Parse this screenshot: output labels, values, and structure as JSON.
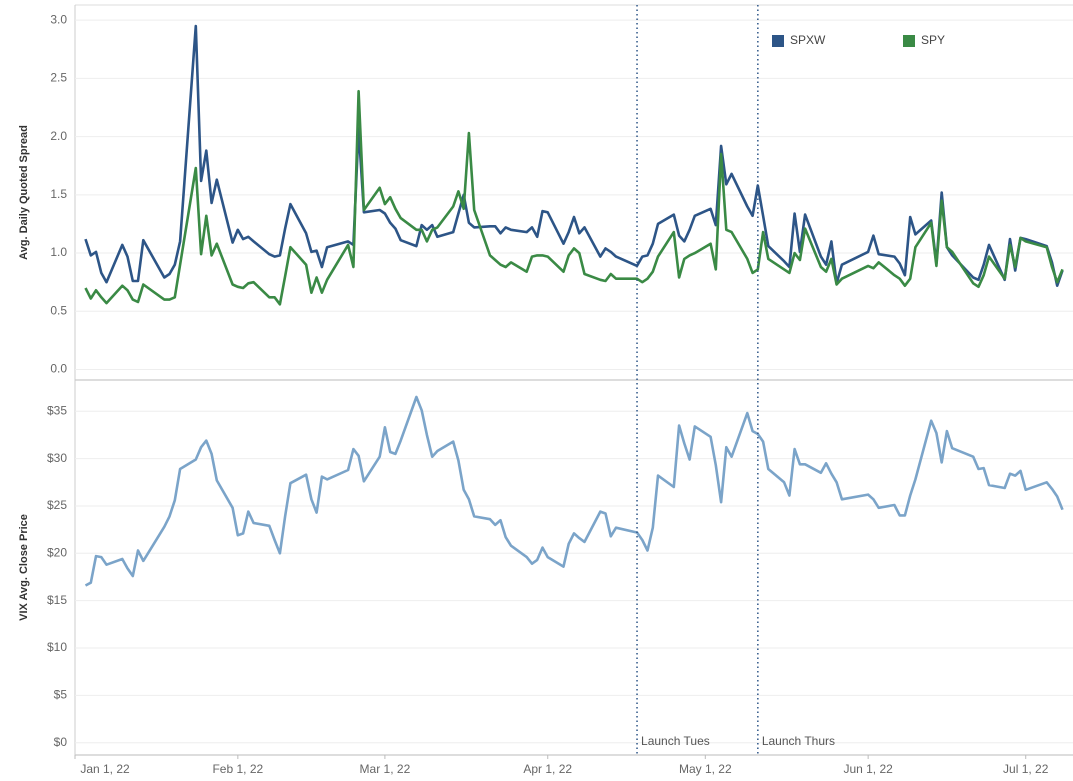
{
  "chart_data": [
    {
      "type": "line",
      "y_label": "Avg. Daily Quoted Spread",
      "legend": "top-right",
      "grid": true,
      "xlim": [
        "2022-01-01",
        "2022-07-10"
      ],
      "ylim": [
        -0.09,
        3.13
      ],
      "yticks": [
        {
          "value": 0,
          "label": "0.0"
        },
        0.5,
        {
          "value": 1,
          "label": "1.0"
        },
        1.5,
        {
          "value": 2,
          "label": "2.0"
        },
        2.5,
        {
          "value": 3,
          "label": "3.0"
        }
      ],
      "x": [
        "2022-01-03",
        "2022-01-04",
        "2022-01-05",
        "2022-01-06",
        "2022-01-07",
        "2022-01-10",
        "2022-01-11",
        "2022-01-12",
        "2022-01-13",
        "2022-01-14",
        "2022-01-18",
        "2022-01-19",
        "2022-01-20",
        "2022-01-21",
        "2022-01-24",
        "2022-01-25",
        "2022-01-26",
        "2022-01-27",
        "2022-01-28",
        "2022-01-31",
        "2022-02-01",
        "2022-02-02",
        "2022-02-03",
        "2022-02-04",
        "2022-02-07",
        "2022-02-08",
        "2022-02-09",
        "2022-02-10",
        "2022-02-11",
        "2022-02-14",
        "2022-02-15",
        "2022-02-16",
        "2022-02-17",
        "2022-02-18",
        "2022-02-22",
        "2022-02-23",
        "2022-02-24",
        "2022-02-25",
        "2022-02-28",
        "2022-03-01",
        "2022-03-02",
        "2022-03-03",
        "2022-03-04",
        "2022-03-07",
        "2022-03-08",
        "2022-03-09",
        "2022-03-10",
        "2022-03-11",
        "2022-03-14",
        "2022-03-15",
        "2022-03-16",
        "2022-03-17",
        "2022-03-18",
        "2022-03-21",
        "2022-03-22",
        "2022-03-23",
        "2022-03-24",
        "2022-03-25",
        "2022-03-28",
        "2022-03-29",
        "2022-03-30",
        "2022-03-31",
        "2022-04-01",
        "2022-04-04",
        "2022-04-05",
        "2022-04-06",
        "2022-04-07",
        "2022-04-08",
        "2022-04-11",
        "2022-04-12",
        "2022-04-13",
        "2022-04-14",
        "2022-04-18",
        "2022-04-19",
        "2022-04-20",
        "2022-04-21",
        "2022-04-22",
        "2022-04-25",
        "2022-04-26",
        "2022-04-27",
        "2022-04-28",
        "2022-04-29",
        "2022-05-02",
        "2022-05-03",
        "2022-05-04",
        "2022-05-05",
        "2022-05-06",
        "2022-05-09",
        "2022-05-10",
        "2022-05-11",
        "2022-05-12",
        "2022-05-13",
        "2022-05-16",
        "2022-05-17",
        "2022-05-18",
        "2022-05-19",
        "2022-05-20",
        "2022-05-23",
        "2022-05-24",
        "2022-05-25",
        "2022-05-26",
        "2022-05-27",
        "2022-06-01",
        "2022-06-02",
        "2022-06-03",
        "2022-06-06",
        "2022-06-07",
        "2022-06-08",
        "2022-06-09",
        "2022-06-10",
        "2022-06-13",
        "2022-06-14",
        "2022-06-15",
        "2022-06-16",
        "2022-06-17",
        "2022-06-21",
        "2022-06-22",
        "2022-06-23",
        "2022-06-24",
        "2022-06-27",
        "2022-06-28",
        "2022-06-29",
        "2022-06-30",
        "2022-07-01",
        "2022-07-05",
        "2022-07-06",
        "2022-07-07",
        "2022-07-08"
      ],
      "series": [
        {
          "name": "SPXW",
          "color": "#2d5587",
          "values": [
            1.12,
            0.98,
            1.01,
            0.83,
            0.75,
            1.07,
            0.97,
            0.76,
            0.76,
            1.11,
            0.79,
            0.82,
            0.9,
            1.1,
            2.95,
            1.62,
            1.88,
            1.43,
            1.63,
            1.09,
            1.2,
            1.12,
            1.14,
            1.1,
            0.99,
            0.97,
            0.98,
            1.21,
            1.42,
            1.17,
            1.01,
            1.02,
            0.88,
            1.05,
            1.1,
            1.07,
            2.07,
            1.35,
            1.37,
            1.34,
            1.26,
            1.21,
            1.11,
            1.06,
            1.24,
            1.2,
            1.24,
            1.14,
            1.18,
            1.34,
            1.5,
            1.26,
            1.22,
            1.23,
            1.23,
            1.17,
            1.22,
            1.2,
            1.18,
            1.22,
            1.14,
            1.36,
            1.35,
            1.08,
            1.18,
            1.31,
            1.17,
            1.22,
            0.97,
            1.04,
            1.01,
            0.97,
            0.89,
            0.97,
            0.98,
            1.08,
            1.25,
            1.33,
            1.15,
            1.1,
            1.2,
            1.32,
            1.38,
            1.24,
            1.92,
            1.59,
            1.68,
            1.4,
            1.32,
            1.58,
            1.32,
            1.06,
            0.93,
            0.88,
            1.34,
            1.01,
            1.33,
            0.97,
            0.9,
            1.1,
            0.74,
            0.9,
            1.01,
            1.15,
            0.99,
            0.97,
            0.91,
            0.81,
            1.31,
            1.16,
            1.28,
            0.91,
            1.52,
            1.05,
            0.98,
            0.79,
            0.77,
            0.9,
            1.07,
            0.77,
            1.12,
            0.85,
            1.13,
            1.12,
            1.06,
            0.92,
            0.72,
            0.85
          ]
        },
        {
          "name": "SPY",
          "color": "#3a8a45",
          "values": [
            0.7,
            0.61,
            0.68,
            0.62,
            0.57,
            0.72,
            0.68,
            0.6,
            0.58,
            0.73,
            0.6,
            0.6,
            0.62,
            0.9,
            1.73,
            0.99,
            1.32,
            0.98,
            1.08,
            0.73,
            0.71,
            0.7,
            0.74,
            0.75,
            0.62,
            0.62,
            0.56,
            0.8,
            1.05,
            0.9,
            0.66,
            0.79,
            0.66,
            0.77,
            1.07,
            0.88,
            2.39,
            1.37,
            1.56,
            1.42,
            1.48,
            1.38,
            1.3,
            1.2,
            1.2,
            1.1,
            1.2,
            1.22,
            1.4,
            1.53,
            1.38,
            2.03,
            1.37,
            0.98,
            0.94,
            0.9,
            0.88,
            0.92,
            0.84,
            0.97,
            0.98,
            0.98,
            0.97,
            0.84,
            0.98,
            1.04,
            1.0,
            0.82,
            0.77,
            0.76,
            0.82,
            0.78,
            0.78,
            0.75,
            0.78,
            0.84,
            0.97,
            1.18,
            0.79,
            0.95,
            0.98,
            1.0,
            1.08,
            0.86,
            1.85,
            1.2,
            1.18,
            0.95,
            0.83,
            0.86,
            1.18,
            0.95,
            0.86,
            0.83,
            1.0,
            0.94,
            1.21,
            0.88,
            0.84,
            0.95,
            0.73,
            0.78,
            0.89,
            0.87,
            0.92,
            0.81,
            0.78,
            0.72,
            0.78,
            1.05,
            1.26,
            0.89,
            1.45,
            1.05,
            1.01,
            0.74,
            0.71,
            0.81,
            0.97,
            0.78,
            1.07,
            0.88,
            1.13,
            1.1,
            1.05,
            0.88,
            0.75,
            0.86
          ]
        }
      ]
    },
    {
      "type": "line",
      "y_label": "VIX Avg. Close Price",
      "grid": true,
      "xlim": [
        "2022-01-01",
        "2022-07-10"
      ],
      "ylim": [
        -1.3,
        38.3
      ],
      "yticks": [
        {
          "value": 0,
          "label": "$0"
        },
        {
          "value": 5,
          "label": "$5"
        },
        {
          "value": 10,
          "label": "$10"
        },
        {
          "value": 15,
          "label": "$15"
        },
        {
          "value": 20,
          "label": "$20"
        },
        {
          "value": 25,
          "label": "$25"
        },
        {
          "value": 30,
          "label": "$30"
        },
        {
          "value": 35,
          "label": "$35"
        }
      ],
      "xticks": [
        {
          "value": "2022-01-01",
          "label": "Jan 1, 22"
        },
        {
          "value": "2022-02-01",
          "label": "Feb 1, 22"
        },
        {
          "value": "2022-03-01",
          "label": "Mar 1, 22"
        },
        {
          "value": "2022-04-01",
          "label": "Apr 1, 22"
        },
        {
          "value": "2022-05-01",
          "label": "May 1, 22"
        },
        {
          "value": "2022-06-01",
          "label": "Jun 1, 22"
        },
        {
          "value": "2022-07-01",
          "label": "Jul 1, 22"
        }
      ],
      "annotations": [
        {
          "x": "2022-04-18",
          "label": "Launch Tues"
        },
        {
          "x": "2022-05-11",
          "label": "Launch Thurs"
        }
      ],
      "x": [
        "2022-01-03",
        "2022-01-04",
        "2022-01-05",
        "2022-01-06",
        "2022-01-07",
        "2022-01-10",
        "2022-01-11",
        "2022-01-12",
        "2022-01-13",
        "2022-01-14",
        "2022-01-18",
        "2022-01-19",
        "2022-01-20",
        "2022-01-21",
        "2022-01-24",
        "2022-01-25",
        "2022-01-26",
        "2022-01-27",
        "2022-01-28",
        "2022-01-31",
        "2022-02-01",
        "2022-02-02",
        "2022-02-03",
        "2022-02-04",
        "2022-02-07",
        "2022-02-08",
        "2022-02-09",
        "2022-02-10",
        "2022-02-11",
        "2022-02-14",
        "2022-02-15",
        "2022-02-16",
        "2022-02-17",
        "2022-02-18",
        "2022-02-22",
        "2022-02-23",
        "2022-02-24",
        "2022-02-25",
        "2022-02-28",
        "2022-03-01",
        "2022-03-02",
        "2022-03-03",
        "2022-03-04",
        "2022-03-07",
        "2022-03-08",
        "2022-03-09",
        "2022-03-10",
        "2022-03-11",
        "2022-03-14",
        "2022-03-15",
        "2022-03-16",
        "2022-03-17",
        "2022-03-18",
        "2022-03-21",
        "2022-03-22",
        "2022-03-23",
        "2022-03-24",
        "2022-03-25",
        "2022-03-28",
        "2022-03-29",
        "2022-03-30",
        "2022-03-31",
        "2022-04-01",
        "2022-04-04",
        "2022-04-05",
        "2022-04-06",
        "2022-04-07",
        "2022-04-08",
        "2022-04-11",
        "2022-04-12",
        "2022-04-13",
        "2022-04-14",
        "2022-04-18",
        "2022-04-19",
        "2022-04-20",
        "2022-04-21",
        "2022-04-22",
        "2022-04-25",
        "2022-04-26",
        "2022-04-27",
        "2022-04-28",
        "2022-04-29",
        "2022-05-02",
        "2022-05-03",
        "2022-05-04",
        "2022-05-05",
        "2022-05-06",
        "2022-05-09",
        "2022-05-10",
        "2022-05-11",
        "2022-05-12",
        "2022-05-13",
        "2022-05-16",
        "2022-05-17",
        "2022-05-18",
        "2022-05-19",
        "2022-05-20",
        "2022-05-23",
        "2022-05-24",
        "2022-05-25",
        "2022-05-26",
        "2022-05-27",
        "2022-06-01",
        "2022-06-02",
        "2022-06-03",
        "2022-06-06",
        "2022-06-07",
        "2022-06-08",
        "2022-06-09",
        "2022-06-10",
        "2022-06-13",
        "2022-06-14",
        "2022-06-15",
        "2022-06-16",
        "2022-06-17",
        "2022-06-21",
        "2022-06-22",
        "2022-06-23",
        "2022-06-24",
        "2022-06-27",
        "2022-06-28",
        "2022-06-29",
        "2022-06-30",
        "2022-07-01",
        "2022-07-05",
        "2022-07-06",
        "2022-07-07",
        "2022-07-08"
      ],
      "color": "#7ba4c9",
      "values": [
        16.6,
        16.9,
        19.7,
        19.6,
        18.8,
        19.4,
        18.4,
        17.6,
        20.3,
        19.2,
        22.8,
        23.9,
        25.6,
        28.9,
        29.9,
        31.2,
        31.9,
        30.5,
        27.7,
        24.8,
        21.9,
        22.1,
        24.4,
        23.2,
        22.9,
        21.4,
        20.0,
        23.9,
        27.4,
        28.3,
        25.7,
        24.3,
        28.1,
        27.8,
        28.8,
        31.0,
        30.3,
        27.6,
        30.2,
        33.3,
        30.7,
        30.5,
        31.9,
        36.5,
        35.1,
        32.5,
        30.2,
        30.8,
        31.8,
        29.8,
        26.7,
        25.7,
        23.9,
        23.6,
        23.0,
        23.5,
        21.7,
        20.8,
        19.6,
        18.9,
        19.3,
        20.6,
        19.6,
        18.6,
        21.0,
        22.1,
        21.6,
        21.2,
        24.4,
        24.2,
        21.8,
        22.7,
        22.2,
        21.4,
        20.3,
        22.7,
        28.2,
        27.0,
        33.5,
        31.6,
        29.9,
        33.4,
        32.3,
        29.3,
        25.4,
        31.2,
        30.2,
        34.8,
        32.9,
        32.6,
        31.8,
        28.9,
        27.5,
        26.1,
        31.0,
        29.4,
        29.4,
        28.5,
        29.5,
        28.4,
        27.5,
        25.7,
        26.2,
        25.7,
        24.8,
        25.1,
        24.0,
        24.0,
        26.1,
        27.8,
        34.0,
        32.7,
        29.6,
        32.9,
        31.1,
        30.2,
        28.9,
        29.0,
        27.2,
        26.9,
        28.4,
        28.2,
        28.7,
        26.7,
        27.5,
        26.8,
        26.0,
        24.6
      ]
    }
  ]
}
